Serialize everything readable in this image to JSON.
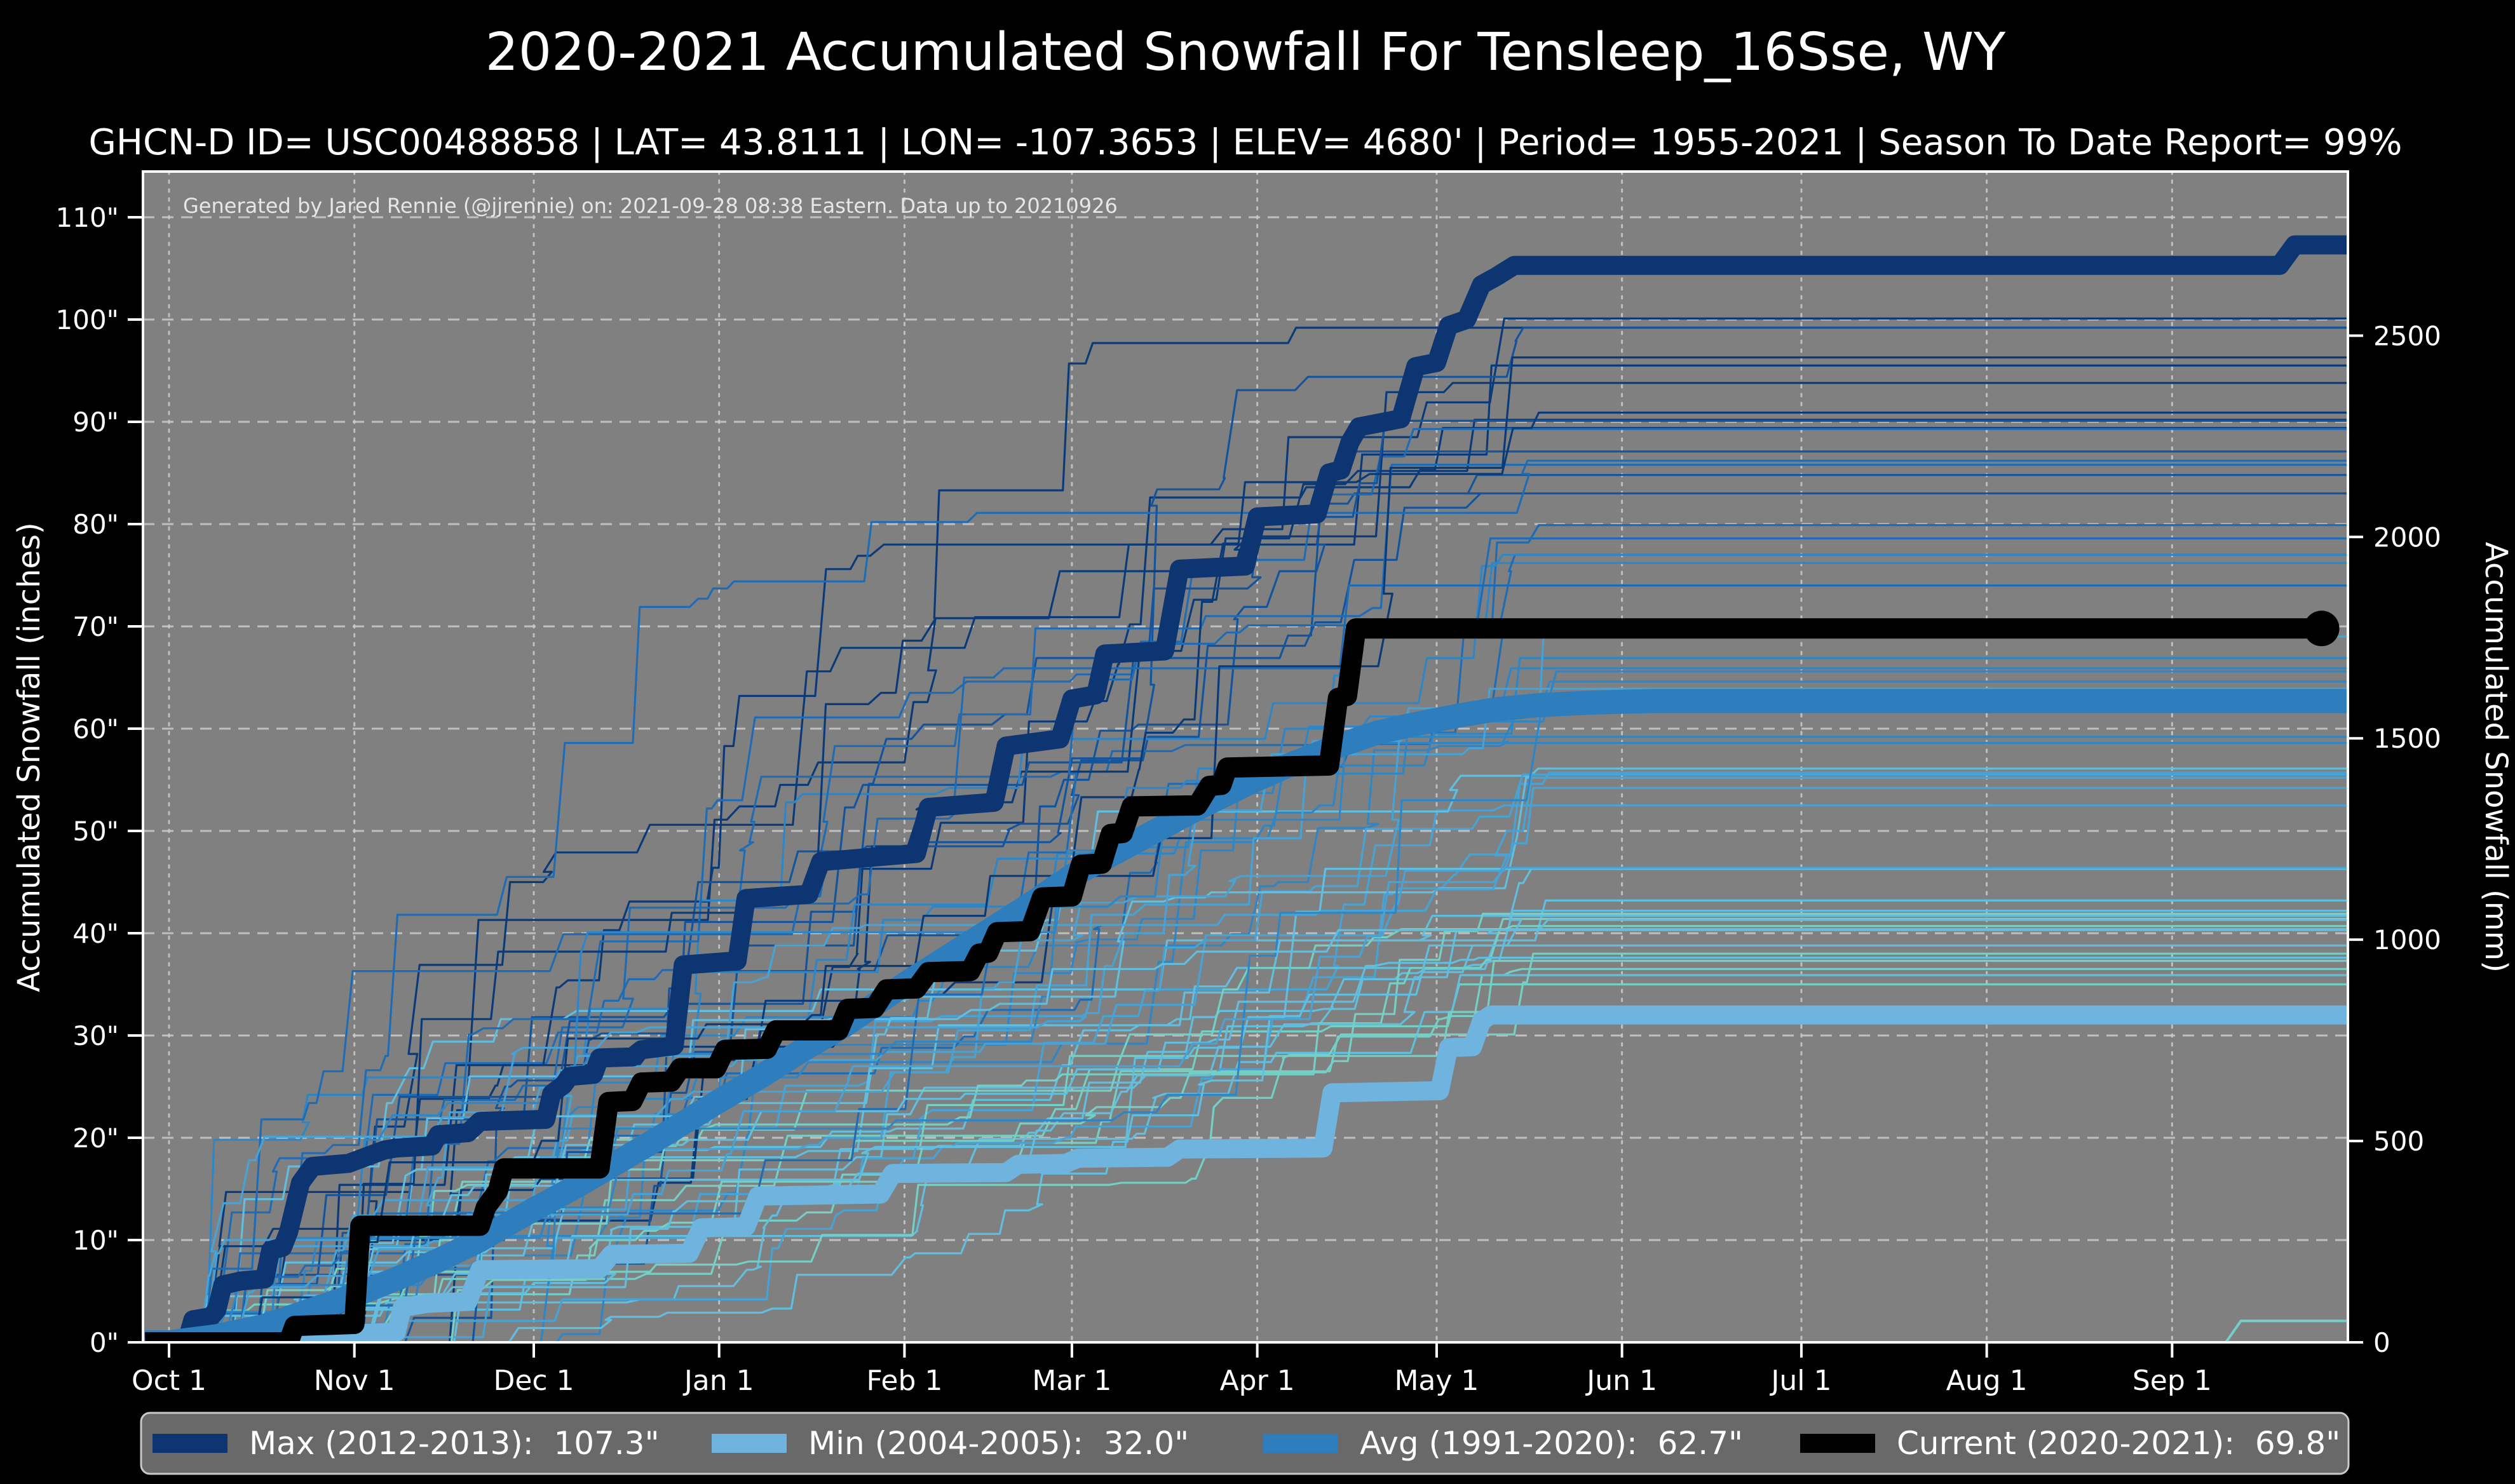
{
  "page": {
    "background": "#000000"
  },
  "colors": {
    "figure_bg": "#000000",
    "plot_bg": "#808080",
    "grid": "#cccccc",
    "spine": "#ffffff",
    "text": "#ffffff",
    "legend_bg": "#696969",
    "legend_border": "#c9c9c9",
    "max_line": "#0c3572",
    "min_line": "#6fb4de",
    "avg_line": "#2e7ebd",
    "current_line": "#000000"
  },
  "chart_data": {
    "type": "line",
    "title": "2020-2021 Accumulated Snowfall For Tensleep_16Sse, WY",
    "subtitle": "GHCN-D ID= USC00488858 | LAT= 43.8111 | LON= -107.3653 | ELEV= 4680' | Period= 1955-2021 | Season To Date Report= 99%",
    "annotation": "Generated by Jared Rennie (@jjrennie) on: 2021-09-28 08:38 Eastern. Data up to 20210926",
    "grid": {
      "horizontal": "dashed",
      "vertical": "dotted",
      "on": true
    },
    "x_axis": {
      "range_days": [
        -4.4,
        364.6
      ],
      "ticks": [
        {
          "day": 0,
          "label": "Oct 1"
        },
        {
          "day": 31,
          "label": "Nov 1"
        },
        {
          "day": 61,
          "label": "Dec 1"
        },
        {
          "day": 92,
          "label": "Jan 1"
        },
        {
          "day": 123,
          "label": "Feb 1"
        },
        {
          "day": 151,
          "label": "Mar 1"
        },
        {
          "day": 182,
          "label": "Apr 1"
        },
        {
          "day": 212,
          "label": "May 1"
        },
        {
          "day": 243,
          "label": "Jun 1"
        },
        {
          "day": 273,
          "label": "Jul 1"
        },
        {
          "day": 304,
          "label": "Aug 1"
        },
        {
          "day": 335,
          "label": "Sep 1"
        }
      ]
    },
    "y_axis_left": {
      "label": "Accumulated Snowfall (inches)",
      "range": [
        0,
        114.5
      ],
      "ticks": [
        {
          "value": 0,
          "label": "0\""
        },
        {
          "value": 10,
          "label": "10\""
        },
        {
          "value": 20,
          "label": "20\""
        },
        {
          "value": 30,
          "label": "30\""
        },
        {
          "value": 40,
          "label": "40\""
        },
        {
          "value": 50,
          "label": "50\""
        },
        {
          "value": 60,
          "label": "60\""
        },
        {
          "value": 70,
          "label": "70\""
        },
        {
          "value": 80,
          "label": "80\""
        },
        {
          "value": 90,
          "label": "90\""
        },
        {
          "value": 100,
          "label": "100\""
        },
        {
          "value": 110,
          "label": "110\""
        }
      ]
    },
    "y_axis_right": {
      "label": "Accumulated Snowfall (mm)",
      "mm_per_inch": 25.4,
      "ticks": [
        {
          "mm": 0,
          "label": "0"
        },
        {
          "mm": 500,
          "label": "500"
        },
        {
          "mm": 1000,
          "label": "1000"
        },
        {
          "mm": 1500,
          "label": "1500"
        },
        {
          "mm": 2000,
          "label": "2000"
        },
        {
          "mm": 2500,
          "label": "2500"
        }
      ]
    },
    "series": [
      {
        "id": "max",
        "legend_label": "Max (2012-2013):  107.3\"",
        "color": "#0c3572",
        "stroke_width": 30,
        "final_value_inches": 107.3,
        "points": [
          [
            -4,
            0
          ],
          [
            3,
            0.2
          ],
          [
            4,
            2.2
          ],
          [
            7,
            2.5
          ],
          [
            8,
            3.2
          ],
          [
            9,
            5.6
          ],
          [
            12,
            6
          ],
          [
            16,
            6.2
          ],
          [
            17,
            9
          ],
          [
            19,
            9.3
          ],
          [
            20,
            10.8
          ],
          [
            22,
            15.6
          ],
          [
            24,
            17.2
          ],
          [
            30,
            17.5
          ],
          [
            36,
            18.8
          ],
          [
            38,
            19
          ],
          [
            44,
            19.2
          ],
          [
            45,
            20.3
          ],
          [
            50,
            20.5
          ],
          [
            52,
            21.6
          ],
          [
            63,
            21.8
          ],
          [
            64,
            24.3
          ],
          [
            66,
            25.2
          ],
          [
            67,
            26
          ],
          [
            71,
            26.2
          ],
          [
            72,
            27.8
          ],
          [
            77.5,
            27.9
          ],
          [
            79,
            28.6
          ],
          [
            84.5,
            29
          ],
          [
            86,
            36.9
          ],
          [
            95,
            37.3
          ],
          [
            96.5,
            43.4
          ],
          [
            107,
            43.8
          ],
          [
            109,
            47
          ],
          [
            125,
            47.8
          ],
          [
            127,
            52.3
          ],
          [
            138,
            52.8
          ],
          [
            140,
            58.3
          ],
          [
            149,
            59
          ],
          [
            151,
            62.9
          ],
          [
            155,
            63.3
          ],
          [
            156.5,
            67.3
          ],
          [
            166.5,
            67.6
          ],
          [
            169,
            75.6
          ],
          [
            180,
            75.9
          ],
          [
            182,
            80.7
          ],
          [
            192,
            81
          ],
          [
            194,
            85
          ],
          [
            196,
            85.3
          ],
          [
            197.5,
            88
          ],
          [
            199,
            89.5
          ],
          [
            206,
            90.3
          ],
          [
            208.5,
            95.4
          ],
          [
            212,
            95.8
          ],
          [
            214,
            99.4
          ],
          [
            217,
            100
          ],
          [
            219.5,
            103.4
          ],
          [
            222,
            104.2
          ],
          [
            225,
            105.3
          ],
          [
            353,
            105.3
          ],
          [
            355.5,
            107.3
          ],
          [
            364.6,
            107.3
          ]
        ]
      },
      {
        "id": "min",
        "legend_label": "Min (2004-2005):  32.0\"",
        "color": "#6fb4de",
        "stroke_width": 30,
        "final_value_inches": 32.0,
        "points": [
          [
            -4,
            0
          ],
          [
            29,
            0
          ],
          [
            30,
            0.8
          ],
          [
            38,
            1
          ],
          [
            39,
            3.4
          ],
          [
            43,
            3.8
          ],
          [
            50,
            4
          ],
          [
            52,
            7.1
          ],
          [
            72,
            7.2
          ],
          [
            74,
            8.6
          ],
          [
            87,
            8.7
          ],
          [
            89,
            11.2
          ],
          [
            96.5,
            11.3
          ],
          [
            98.5,
            14.3
          ],
          [
            119,
            14.5
          ],
          [
            121,
            16.5
          ],
          [
            140,
            16.6
          ],
          [
            142,
            17.4
          ],
          [
            150,
            17.5
          ],
          [
            152,
            18
          ],
          [
            167,
            18.1
          ],
          [
            169,
            18.9
          ],
          [
            193,
            19
          ],
          [
            194.5,
            24.4
          ],
          [
            212.5,
            24.6
          ],
          [
            214,
            28.8
          ],
          [
            218,
            28.9
          ],
          [
            219.5,
            31.4
          ],
          [
            221,
            32
          ],
          [
            364.6,
            32
          ]
        ]
      },
      {
        "id": "avg",
        "legend_label": "Avg (1991-2020):  62.7\"",
        "color": "#2e7ebd",
        "stroke_width": 38,
        "final_value_inches": 62.7,
        "points": [
          [
            -4,
            0
          ],
          [
            0,
            0
          ],
          [
            8,
            0.6
          ],
          [
            16,
            1.6
          ],
          [
            24,
            3.2
          ],
          [
            31,
            4.6
          ],
          [
            38,
            6.2
          ],
          [
            45,
            8
          ],
          [
            52,
            10
          ],
          [
            61,
            13
          ],
          [
            68,
            15.2
          ],
          [
            75,
            17.6
          ],
          [
            82,
            20
          ],
          [
            92,
            23.6
          ],
          [
            99,
            26
          ],
          [
            106,
            28.6
          ],
          [
            113,
            31
          ],
          [
            123,
            35
          ],
          [
            130,
            37.6
          ],
          [
            137,
            40.2
          ],
          [
            144,
            42.8
          ],
          [
            151,
            45.6
          ],
          [
            158,
            47.8
          ],
          [
            165,
            50
          ],
          [
            172,
            52.2
          ],
          [
            181,
            54.8
          ],
          [
            188,
            56.6
          ],
          [
            195,
            58.2
          ],
          [
            202,
            59.6
          ],
          [
            208,
            60.4
          ],
          [
            215,
            61.2
          ],
          [
            222,
            61.9
          ],
          [
            229,
            62.3
          ],
          [
            238,
            62.55
          ],
          [
            248,
            62.7
          ],
          [
            364.6,
            62.7
          ]
        ]
      },
      {
        "id": "current",
        "legend_label": "Current (2020-2021):  69.8\"",
        "color": "#000000",
        "stroke_width": 32,
        "final_value_inches": 69.8,
        "end_marker": {
          "day": 360,
          "value": 69.8,
          "radius": 28
        },
        "points": [
          [
            -4,
            0
          ],
          [
            20,
            0
          ],
          [
            21,
            1.6
          ],
          [
            31,
            1.8
          ],
          [
            32,
            11.4
          ],
          [
            52,
            11.4
          ],
          [
            53,
            13.2
          ],
          [
            55,
            14.8
          ],
          [
            56,
            17
          ],
          [
            72,
            17
          ],
          [
            73.5,
            23.5
          ],
          [
            77.5,
            23.6
          ],
          [
            79,
            25.4
          ],
          [
            84,
            25.5
          ],
          [
            85.5,
            26.8
          ],
          [
            91.5,
            26.8
          ],
          [
            93,
            28.6
          ],
          [
            100,
            28.7
          ],
          [
            101.5,
            30.5
          ],
          [
            112,
            30.5
          ],
          [
            113.5,
            32.6
          ],
          [
            118,
            32.7
          ],
          [
            120,
            34.5
          ],
          [
            125,
            34.6
          ],
          [
            127,
            36.2
          ],
          [
            134,
            36.3
          ],
          [
            135.5,
            38
          ],
          [
            137,
            38.1
          ],
          [
            138.5,
            40.1
          ],
          [
            144,
            40.2
          ],
          [
            146,
            43.5
          ],
          [
            151,
            43.6
          ],
          [
            152.5,
            46.7
          ],
          [
            156,
            46.8
          ],
          [
            157.5,
            49.7
          ],
          [
            159.5,
            49.8
          ],
          [
            161,
            52.4
          ],
          [
            172,
            52.5
          ],
          [
            174,
            54.4
          ],
          [
            176,
            54.5
          ],
          [
            177,
            56.2
          ],
          [
            194,
            56.4
          ],
          [
            195.5,
            63
          ],
          [
            197,
            63.2
          ],
          [
            198.5,
            69.8
          ],
          [
            360,
            69.8
          ]
        ]
      }
    ],
    "background_years": {
      "note": "thin unlabeled season lines 1955-2021",
      "count": 58,
      "seed": 1337,
      "stroke_width": 3.2,
      "palette": [
        "#0a3a78",
        "#14549c",
        "#1f6cb4",
        "#2e86c6",
        "#47a3d6",
        "#62bede",
        "#74cfc4"
      ],
      "forced_finals": [
        99.2,
        95.5,
        89.4,
        87.1,
        84.8,
        83.0,
        79.9,
        76.2,
        36.5,
        38.8
      ],
      "final_range": [
        35,
        101
      ]
    },
    "late_season_line": {
      "color": "#74cfc4",
      "stroke_width": 4,
      "points": [
        [
          344,
          0
        ],
        [
          346.5,
          2.1
        ],
        [
          364.6,
          2.1
        ]
      ]
    },
    "legend": {
      "position": "bottom"
    }
  }
}
